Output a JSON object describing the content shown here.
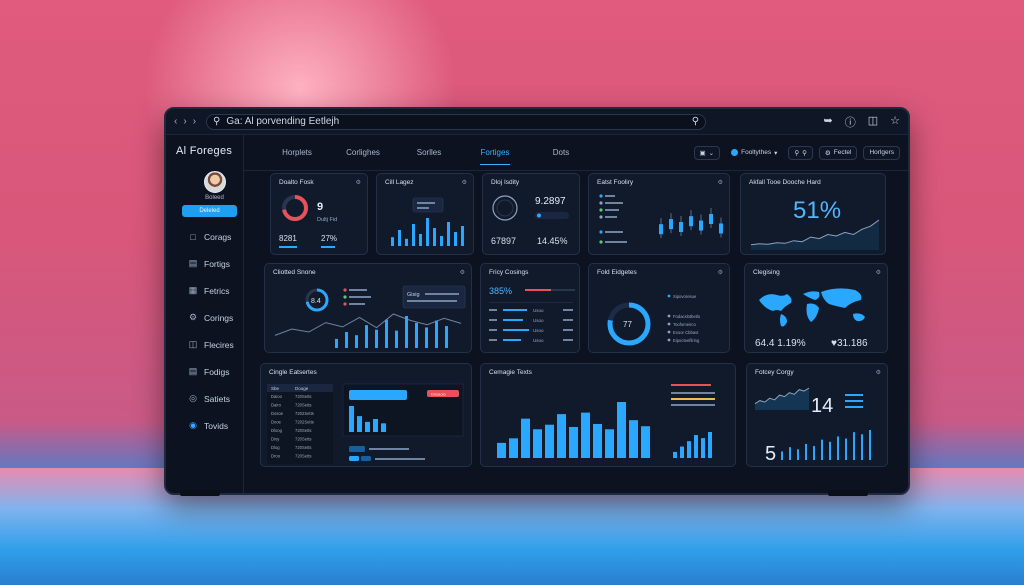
{
  "window": {
    "address": "Ga: Al porvending Eetlejh"
  },
  "sidebar": {
    "brand": "Al Foreges",
    "user_name": "Boleed",
    "active_label": "Deleled",
    "items": [
      {
        "label": "Corags",
        "icon": "bookmark-icon"
      },
      {
        "label": "Fortigs",
        "icon": "tag-icon"
      },
      {
        "label": "Fetrics",
        "icon": "chart-icon"
      },
      {
        "label": "Corings",
        "icon": "gear-icon"
      },
      {
        "label": "Flecires",
        "icon": "folder-icon"
      },
      {
        "label": "Fodigs",
        "icon": "document-icon"
      },
      {
        "label": "Satiets",
        "icon": "globe-icon"
      },
      {
        "label": "Tovids",
        "icon": "circle-icon"
      }
    ]
  },
  "tabs": [
    {
      "label": "Horplets",
      "active": false
    },
    {
      "label": "Corlighes",
      "active": false
    },
    {
      "label": "Sorlles",
      "active": false
    },
    {
      "label": "Fortiges",
      "active": true
    },
    {
      "label": "Dots",
      "active": false
    }
  ],
  "toolbar": {
    "filter_label": "Fooltythes",
    "button1": "Fectel",
    "button2": "Horlgers"
  },
  "cards": {
    "c1": {
      "title": "Doalto Fosk",
      "big": "9",
      "sub": "Dultj Fid",
      "stat1": "8281",
      "stat2": "27%",
      "gauge": 0.72
    },
    "c2": {
      "title": "Cill Lagez",
      "bars": [
        22,
        40,
        18,
        55,
        30,
        70,
        45,
        25,
        60,
        35,
        50
      ]
    },
    "c3": {
      "title": "Dloj Isdity",
      "big": "9.2897",
      "stat1": "67897",
      "stat2": "14.45%"
    },
    "c4": {
      "title": "Eatst Fooliry",
      "candles": [
        38,
        52,
        44,
        60,
        48,
        66,
        40
      ]
    },
    "c5": {
      "title": "Akfall Tooe Dooche Hard",
      "big": "51%",
      "line": [
        10,
        12,
        11,
        14,
        13,
        18,
        16,
        25,
        22,
        30,
        27,
        34,
        30,
        40,
        46,
        58
      ]
    },
    "c6": {
      "title": "Cliotted Snone",
      "big": "8.4",
      "bars": [
        20,
        35,
        28,
        50,
        40,
        62,
        38,
        70,
        55,
        45,
        60,
        48
      ],
      "pop": "Gisig"
    },
    "c7": {
      "title": "Fricy Cosings",
      "big": "385%",
      "rows": [
        "Usoo",
        "Usoo",
        "Usoo",
        "Usoo"
      ]
    },
    "c8": {
      "title": "Fold Eidgetes",
      "big": "77",
      "gauge": 0.78,
      "legend": [
        "Sipovoresue",
        "Fodacslotbetlo",
        "Toofomeirco",
        "Exoor Cbbavt",
        "Eipocteefilring"
      ]
    },
    "c9": {
      "title": "Clegising",
      "stat1": "64.4 1.19%",
      "stat2": "♥31.186"
    },
    "c10": {
      "title": "Cingle Eatsertes",
      "headers": [
        "Sbe",
        "Dooge"
      ],
      "rows": [
        [
          "Daioo",
          "720Setts"
        ],
        [
          "Dairo",
          "720Setts"
        ],
        [
          "Dosoe",
          "7202Setts"
        ],
        [
          "Dooe",
          "7202Setts"
        ],
        [
          "Dloog",
          "720Setts"
        ],
        [
          "Dioy",
          "720Setts"
        ],
        [
          "Dlog",
          "720Setts"
        ],
        [
          "Droo",
          "720Setts"
        ]
      ],
      "pill": "Dosaolo"
    },
    "c11": {
      "title": "Cemagie Texts",
      "bars": [
        20,
        26,
        52,
        38,
        44,
        58,
        41,
        60,
        45,
        38,
        74,
        50,
        42
      ],
      "mini": [
        8,
        15,
        22,
        30,
        26,
        34
      ]
    },
    "c12": {
      "title": "Fotcey Corgy",
      "big1": "14",
      "big2": "5",
      "line": [
        8,
        12,
        10,
        15,
        13,
        19,
        17,
        22,
        20,
        26,
        24,
        28
      ]
    }
  },
  "colors": {
    "accent": "#2aa7ff",
    "alert": "#e8505b",
    "panel": "#111a2a"
  }
}
